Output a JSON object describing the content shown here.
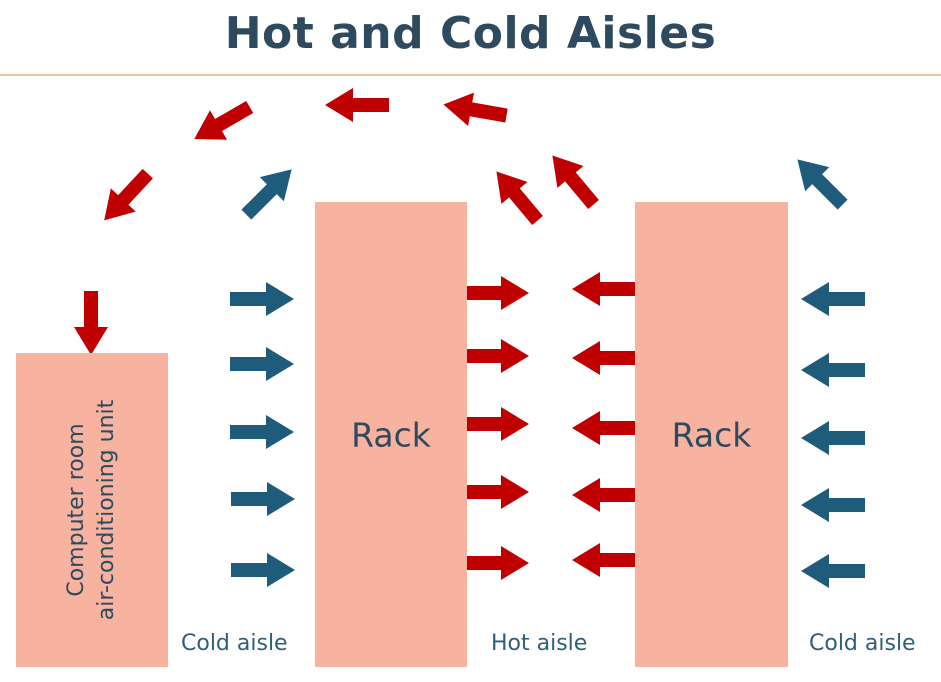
{
  "title": "Hot and Cold Aisles",
  "crac": {
    "line1": "Computer room",
    "line2": "air-conditioning unit"
  },
  "racks": [
    "Rack",
    "Rack"
  ],
  "aisles": [
    "Cold aisle",
    "Hot aisle",
    "Cold aisle"
  ],
  "colors": {
    "title": "#2e4a5e",
    "box": "#f7b2a0",
    "hot_arrow": "#c00000",
    "cold_arrow": "#1f5b7a"
  }
}
